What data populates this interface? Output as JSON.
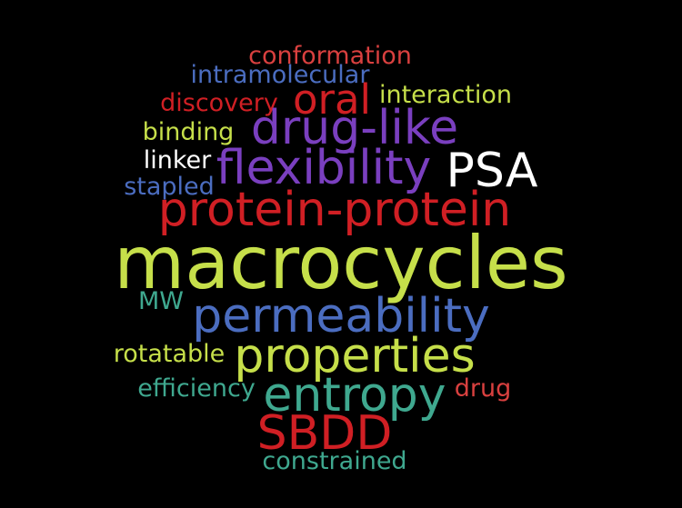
{
  "word_cloud": {
    "background_color": "#000000",
    "palette": {
      "red": "#d01f24",
      "blue": "#4b6dc0",
      "yellow": "#c6df4a",
      "purple": "#7a3fbf",
      "white": "#ffffff",
      "teal": "#3fa88f"
    },
    "words": {
      "conformation": "conformation",
      "intramolecular": "intramolecular",
      "discovery": "discovery",
      "oral": "oral",
      "interaction": "interaction",
      "binding": "binding",
      "drug_like": "drug-like",
      "linker": "linker",
      "flexibility": "flexibility",
      "psa": "PSA",
      "stapled": "stapled",
      "protein_protein": "protein-protein",
      "macrocycles": "macrocycles",
      "mw": "MW",
      "permeability": "permeability",
      "rotatable": "rotatable",
      "properties": "properties",
      "efficiency": "efficiency",
      "entropy": "entropy",
      "drug": "drug",
      "sbdd": "SBDD",
      "constrained": "constrained"
    }
  }
}
